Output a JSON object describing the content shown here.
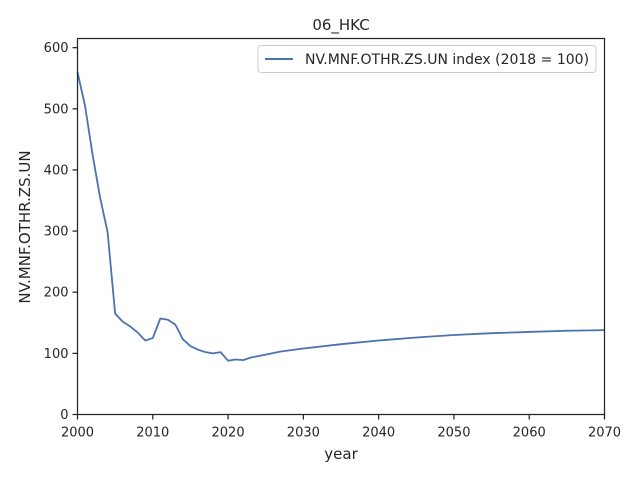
{
  "chart_data": {
    "type": "line",
    "title": "06_HKC",
    "xlabel": "year",
    "ylabel": "NV.MNF.OTHR.ZS.UN",
    "xlim": [
      2000,
      2070
    ],
    "ylim": [
      0,
      615
    ],
    "xticks": [
      2000,
      2010,
      2020,
      2030,
      2040,
      2050,
      2060,
      2070
    ],
    "yticks": [
      0,
      100,
      200,
      300,
      400,
      500,
      600
    ],
    "grid": false,
    "legend_position": "top-right",
    "series": [
      {
        "name": "NV.MNF.OTHR.ZS.UN index (2018 = 100)",
        "color": "#4c72b0",
        "x": [
          2000,
          2001,
          2002,
          2003,
          2004,
          2005,
          2006,
          2007,
          2008,
          2009,
          2010,
          2011,
          2012,
          2013,
          2014,
          2015,
          2016,
          2017,
          2018,
          2019,
          2020,
          2021,
          2022,
          2023,
          2025,
          2027,
          2030,
          2035,
          2040,
          2045,
          2050,
          2055,
          2060,
          2065,
          2070
        ],
        "y": [
          560,
          505,
          425,
          355,
          298,
          165,
          152,
          144,
          134,
          121,
          125,
          157,
          155,
          147,
          123,
          112,
          106,
          102,
          100,
          102,
          88,
          90,
          89,
          93,
          98,
          103,
          108,
          115,
          121,
          126,
          130,
          133,
          135,
          137,
          138
        ]
      }
    ]
  }
}
